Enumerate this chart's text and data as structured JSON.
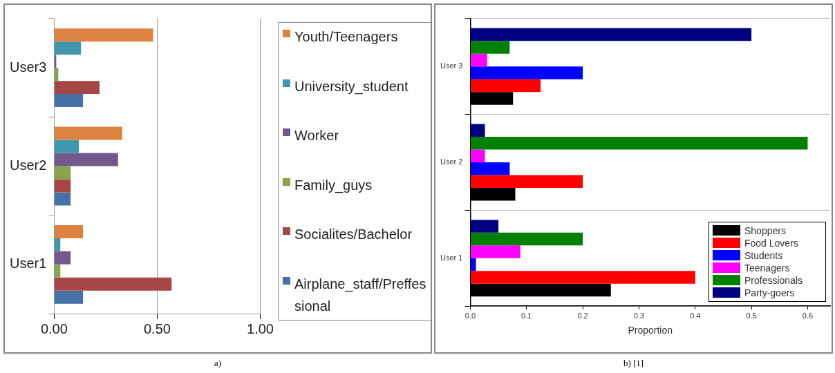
{
  "chart_data": [
    {
      "type": "bar",
      "orientation": "horizontal",
      "categories": [
        "User3",
        "User2",
        "User1"
      ],
      "series": [
        {
          "name": "Youth/Teenagers",
          "color": "#dd8241",
          "values": [
            0.48,
            0.33,
            0.14
          ]
        },
        {
          "name": "University_student",
          "color": "#4197b0",
          "values": [
            0.13,
            0.12,
            0.03
          ]
        },
        {
          "name": "Worker",
          "color": "#72598d",
          "values": [
            0.01,
            0.31,
            0.08
          ]
        },
        {
          "name": "Family_guys",
          "color": "#88a54d",
          "values": [
            0.02,
            0.08,
            0.03
          ]
        },
        {
          "name": "Socialites/Bachelor",
          "color": "#a74745",
          "values": [
            0.22,
            0.08,
            0.57
          ]
        },
        {
          "name": "Airplane_staff/Preffessional",
          "color": "#4571a6",
          "values": [
            0.14,
            0.08,
            0.14
          ]
        }
      ],
      "xlim": [
        0,
        1
      ],
      "xticks": [
        {
          "value": 0,
          "label": "0.00"
        },
        {
          "value": 0.5,
          "label": "0.50"
        },
        {
          "value": 1,
          "label": "1.00"
        }
      ],
      "grid": "x",
      "legend": "right",
      "annotations": [
        "a)"
      ]
    },
    {
      "type": "bar",
      "orientation": "horizontal",
      "categories": [
        "User 3",
        "User 2",
        "User 1"
      ],
      "xlabel": "Proportion",
      "series": [
        {
          "name": "Shoppers",
          "color": "#000000",
          "values": [
            0.076,
            0.08,
            0.25
          ]
        },
        {
          "name": "Food Lovers",
          "color": "#ff0000",
          "values": [
            0.125,
            0.2,
            0.4
          ]
        },
        {
          "name": "Students",
          "color": "#0000ff",
          "values": [
            0.2,
            0.07,
            0.01
          ]
        },
        {
          "name": "Teenagers",
          "color": "#ff00ff",
          "values": [
            0.03,
            0.026,
            0.089
          ]
        },
        {
          "name": "Professionals",
          "color": "#008000",
          "values": [
            0.07,
            0.6,
            0.2
          ]
        },
        {
          "name": "Party-goers",
          "color": "#000080",
          "values": [
            0.5,
            0.026,
            0.05
          ]
        }
      ],
      "xlim": [
        0,
        0.64
      ],
      "xticks": [
        {
          "value": 0,
          "label": "0.0"
        },
        0.1,
        0.2,
        0.3,
        0.4,
        0.5,
        0.6
      ],
      "grid": "y",
      "legend": "bottom right",
      "annotations": [
        "b) [1]"
      ]
    }
  ]
}
